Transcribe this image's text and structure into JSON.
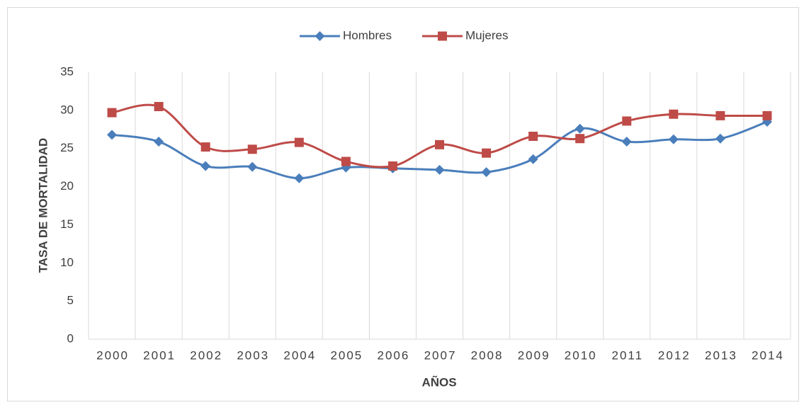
{
  "chart_data": {
    "type": "line",
    "xlabel": "AÑOS",
    "ylabel": "TASA DE MORTALIDAD",
    "categories": [
      "2000",
      "2001",
      "2002",
      "2003",
      "2004",
      "2005",
      "2006",
      "2007",
      "2008",
      "2009",
      "2010",
      "2011",
      "2012",
      "2013",
      "2014"
    ],
    "series": [
      {
        "name": "Hombres",
        "color": "#4a7ebb",
        "marker": "diamond",
        "values": [
          26.8,
          25.9,
          22.7,
          22.6,
          21.1,
          22.5,
          22.4,
          22.2,
          21.9,
          23.6,
          27.6,
          25.9,
          26.2,
          26.3,
          28.5
        ]
      },
      {
        "name": "Mujeres",
        "color": "#be4b48",
        "marker": "square",
        "values": [
          29.7,
          30.5,
          25.2,
          24.9,
          25.8,
          23.3,
          22.7,
          25.5,
          24.4,
          26.6,
          26.3,
          28.6,
          29.5,
          29.3,
          29.3
        ]
      }
    ],
    "ylim": [
      0,
      35
    ],
    "yticks": [
      0,
      5,
      10,
      15,
      20,
      25,
      30,
      35
    ],
    "grid": "x",
    "legend": "top",
    "smooth": true
  }
}
